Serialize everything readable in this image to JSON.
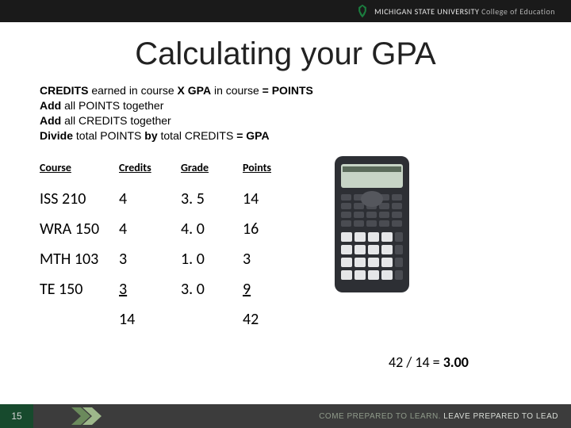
{
  "header": {
    "institution_main": "MICHIGAN STATE UNIVERSITY",
    "institution_sub": "College of Education",
    "logo_color": "#1b7d3f"
  },
  "title": "Calculating your GPA",
  "instructions": {
    "line1_prefix_bold": "CREDITS",
    "line1_mid": " earned in course ",
    "line1_x_bold": "X GPA",
    "line1_after": " in course ",
    "line1_eq_bold": "= POINTS",
    "line2_prefix_bold": "Add",
    "line2_after": " all POINTS together",
    "line3_prefix_bold": "Add",
    "line3_after": " all CREDITS together",
    "line4_prefix_bold": "Divide",
    "line4_mid": " total POINTS ",
    "line4_by_bold": "by",
    "line4_after": " total CREDITS ",
    "line4_eq_bold": "= GPA"
  },
  "table": {
    "columns": [
      "Course",
      "Credits",
      "Grade",
      "Points"
    ],
    "rows": [
      {
        "course": "ISS 210",
        "credits": "4",
        "grade": "3. 5",
        "points": "14"
      },
      {
        "course": "WRA 150",
        "credits": "4",
        "grade": "4. 0",
        "points": "16"
      },
      {
        "course": "MTH 103",
        "credits": "3",
        "grade": "1. 0",
        "points": "3"
      },
      {
        "course": "TE 150",
        "credits": "3",
        "grade": "3. 0",
        "points": "9",
        "underline_credits_points": true
      }
    ],
    "totals": {
      "credits": "14",
      "points": "42"
    }
  },
  "result": {
    "expression": "42 / 14 = ",
    "value": "3.00"
  },
  "footer": {
    "page_number": "15",
    "page_bg": "#174a2d",
    "tagline_learn": "COME PREPARED TO LEARN.",
    "tagline_lead": "LEAVE PREPARED TO LEAD"
  },
  "calculator": {
    "body_color": "#2d2f34",
    "screen_color": "#c7d4c6",
    "btn_dark": "#3b3d42",
    "btn_light": "#e5e6e8"
  }
}
